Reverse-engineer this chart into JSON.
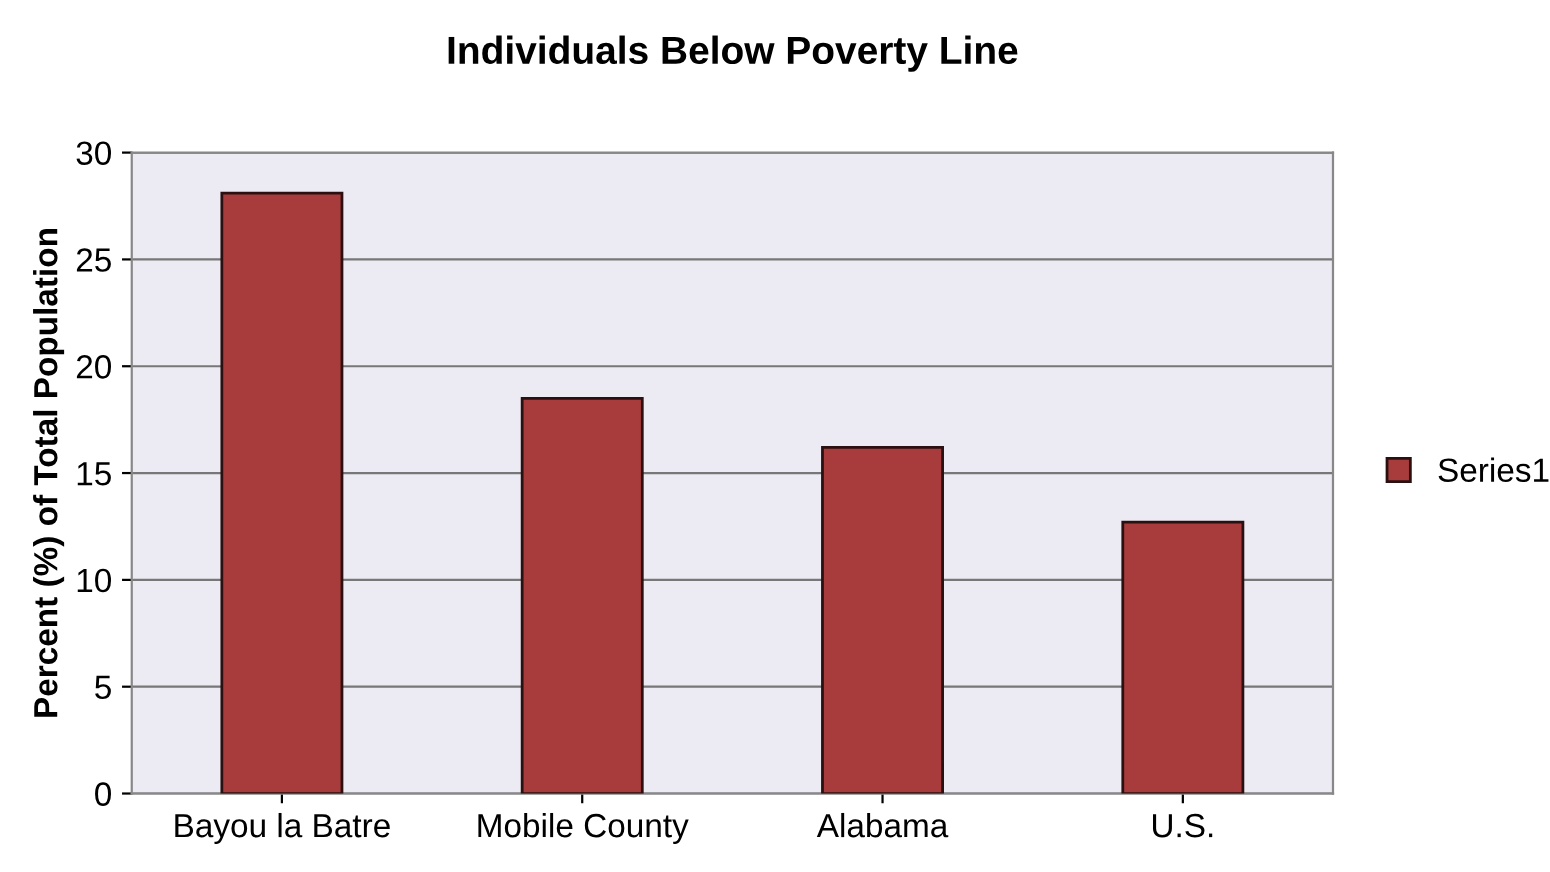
{
  "chart_data": {
    "type": "bar",
    "title": "Individuals Below Poverty Line",
    "ylabel": "Percent (%) of Total Population",
    "categories": [
      "Bayou la Batre",
      "Mobile County",
      "Alabama",
      "U.S."
    ],
    "series": [
      {
        "name": "Series1",
        "color": "#a83c3c",
        "values": [
          28.1,
          18.5,
          16.2,
          12.7
        ]
      }
    ],
    "ylim": [
      0,
      30
    ],
    "yticks": [
      0,
      5,
      10,
      15,
      20,
      25,
      30
    ],
    "grid": "y",
    "legend": "right"
  }
}
